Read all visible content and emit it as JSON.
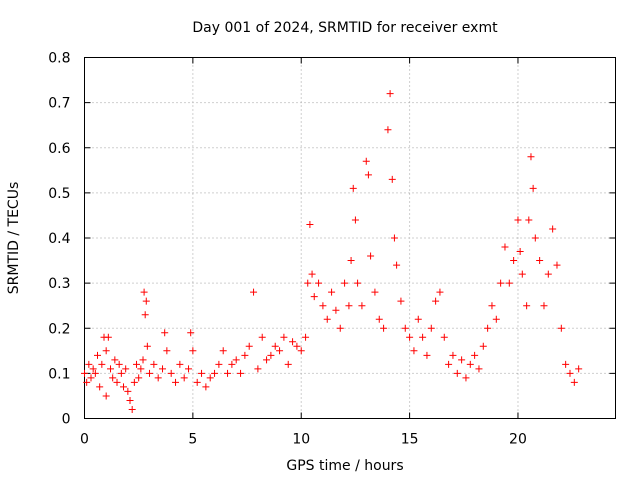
{
  "chart_data": {
    "type": "scatter",
    "title": "Day 001 of 2024, SRMTID for receiver exmt",
    "xlabel": "GPS time / hours",
    "ylabel": "SRMTID / TECUs",
    "xlim": [
      0,
      24.5
    ],
    "ylim": [
      0,
      0.8
    ],
    "x_ticks": [
      0,
      5,
      10,
      15,
      20
    ],
    "y_ticks": [
      0,
      0.1,
      0.2,
      0.3,
      0.4,
      0.5,
      0.6,
      0.7,
      0.8
    ],
    "x_tick_labels": [
      "0",
      "5",
      "10",
      "15",
      "20"
    ],
    "y_tick_labels": [
      "0",
      "0.1",
      "0.2",
      "0.3",
      "0.4",
      "0.5",
      "0.6",
      "0.7",
      "0.8"
    ],
    "grid": true,
    "marker": "plus",
    "color": "#ff0000",
    "series": [
      {
        "name": "SRMTID",
        "points": [
          [
            0.0,
            0.1
          ],
          [
            0.1,
            0.08
          ],
          [
            0.2,
            0.12
          ],
          [
            0.3,
            0.09
          ],
          [
            0.4,
            0.11
          ],
          [
            0.5,
            0.1
          ],
          [
            0.6,
            0.14
          ],
          [
            0.7,
            0.07
          ],
          [
            0.8,
            0.12
          ],
          [
            0.9,
            0.18
          ],
          [
            1.0,
            0.05
          ],
          [
            1.0,
            0.15
          ],
          [
            1.1,
            0.18
          ],
          [
            1.2,
            0.11
          ],
          [
            1.3,
            0.09
          ],
          [
            1.4,
            0.13
          ],
          [
            1.5,
            0.08
          ],
          [
            1.6,
            0.12
          ],
          [
            1.7,
            0.1
          ],
          [
            1.8,
            0.07
          ],
          [
            1.9,
            0.11
          ],
          [
            2.0,
            0.06
          ],
          [
            2.1,
            0.04
          ],
          [
            2.2,
            0.02
          ],
          [
            2.3,
            0.08
          ],
          [
            2.4,
            0.12
          ],
          [
            2.5,
            0.09
          ],
          [
            2.6,
            0.11
          ],
          [
            2.7,
            0.13
          ],
          [
            2.75,
            0.28
          ],
          [
            2.8,
            0.23
          ],
          [
            2.85,
            0.26
          ],
          [
            2.9,
            0.16
          ],
          [
            3.0,
            0.1
          ],
          [
            3.2,
            0.12
          ],
          [
            3.4,
            0.09
          ],
          [
            3.6,
            0.11
          ],
          [
            3.7,
            0.19
          ],
          [
            3.8,
            0.15
          ],
          [
            4.0,
            0.1
          ],
          [
            4.2,
            0.08
          ],
          [
            4.4,
            0.12
          ],
          [
            4.6,
            0.09
          ],
          [
            4.8,
            0.11
          ],
          [
            4.9,
            0.19
          ],
          [
            5.0,
            0.15
          ],
          [
            5.2,
            0.08
          ],
          [
            5.4,
            0.1
          ],
          [
            5.6,
            0.07
          ],
          [
            5.8,
            0.09
          ],
          [
            6.0,
            0.1
          ],
          [
            6.2,
            0.12
          ],
          [
            6.4,
            0.15
          ],
          [
            6.6,
            0.1
          ],
          [
            6.8,
            0.12
          ],
          [
            7.0,
            0.13
          ],
          [
            7.2,
            0.1
          ],
          [
            7.4,
            0.14
          ],
          [
            7.6,
            0.16
          ],
          [
            7.8,
            0.28
          ],
          [
            8.0,
            0.11
          ],
          [
            8.2,
            0.18
          ],
          [
            8.4,
            0.13
          ],
          [
            8.6,
            0.14
          ],
          [
            8.8,
            0.16
          ],
          [
            9.0,
            0.15
          ],
          [
            9.2,
            0.18
          ],
          [
            9.4,
            0.12
          ],
          [
            9.6,
            0.17
          ],
          [
            9.8,
            0.16
          ],
          [
            10.0,
            0.15
          ],
          [
            10.2,
            0.18
          ],
          [
            10.3,
            0.3
          ],
          [
            10.4,
            0.43
          ],
          [
            10.5,
            0.32
          ],
          [
            10.6,
            0.27
          ],
          [
            10.8,
            0.3
          ],
          [
            11.0,
            0.25
          ],
          [
            11.2,
            0.22
          ],
          [
            11.4,
            0.28
          ],
          [
            11.6,
            0.24
          ],
          [
            11.8,
            0.2
          ],
          [
            12.0,
            0.3
          ],
          [
            12.2,
            0.25
          ],
          [
            12.3,
            0.35
          ],
          [
            12.4,
            0.51
          ],
          [
            12.5,
            0.44
          ],
          [
            12.6,
            0.3
          ],
          [
            12.8,
            0.25
          ],
          [
            13.0,
            0.57
          ],
          [
            13.1,
            0.54
          ],
          [
            13.2,
            0.36
          ],
          [
            13.4,
            0.28
          ],
          [
            13.6,
            0.22
          ],
          [
            13.8,
            0.2
          ],
          [
            14.0,
            0.64
          ],
          [
            14.1,
            0.72
          ],
          [
            14.2,
            0.53
          ],
          [
            14.3,
            0.4
          ],
          [
            14.4,
            0.34
          ],
          [
            14.6,
            0.26
          ],
          [
            14.8,
            0.2
          ],
          [
            15.0,
            0.18
          ],
          [
            15.2,
            0.15
          ],
          [
            15.4,
            0.22
          ],
          [
            15.6,
            0.18
          ],
          [
            15.8,
            0.14
          ],
          [
            16.0,
            0.2
          ],
          [
            16.2,
            0.26
          ],
          [
            16.4,
            0.28
          ],
          [
            16.6,
            0.18
          ],
          [
            16.8,
            0.12
          ],
          [
            17.0,
            0.14
          ],
          [
            17.2,
            0.1
          ],
          [
            17.4,
            0.13
          ],
          [
            17.6,
            0.09
          ],
          [
            17.8,
            0.12
          ],
          [
            18.0,
            0.14
          ],
          [
            18.2,
            0.11
          ],
          [
            18.4,
            0.16
          ],
          [
            18.6,
            0.2
          ],
          [
            18.8,
            0.25
          ],
          [
            19.0,
            0.22
          ],
          [
            19.2,
            0.3
          ],
          [
            19.4,
            0.38
          ],
          [
            19.6,
            0.3
          ],
          [
            19.8,
            0.35
          ],
          [
            20.0,
            0.44
          ],
          [
            20.1,
            0.37
          ],
          [
            20.2,
            0.32
          ],
          [
            20.4,
            0.25
          ],
          [
            20.5,
            0.44
          ],
          [
            20.6,
            0.58
          ],
          [
            20.7,
            0.51
          ],
          [
            20.8,
            0.4
          ],
          [
            21.0,
            0.35
          ],
          [
            21.2,
            0.25
          ],
          [
            21.4,
            0.32
          ],
          [
            21.6,
            0.42
          ],
          [
            21.8,
            0.34
          ],
          [
            22.0,
            0.2
          ],
          [
            22.2,
            0.12
          ],
          [
            22.4,
            0.1
          ],
          [
            22.6,
            0.08
          ],
          [
            22.8,
            0.11
          ]
        ]
      }
    ]
  }
}
